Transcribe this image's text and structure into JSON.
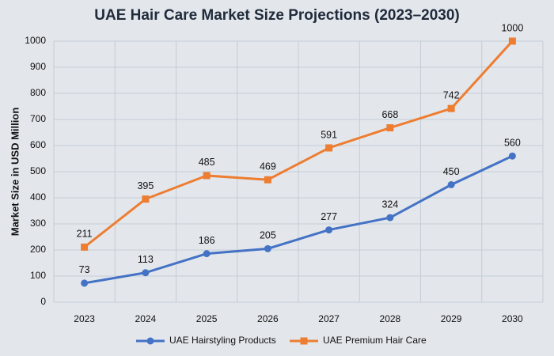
{
  "chart_data": {
    "type": "line",
    "title": "UAE Hair Care Market Size Projections (2023–2030)",
    "y_label": "Market Size in USD Million",
    "categories": [
      "2023",
      "2024",
      "2025",
      "2026",
      "2027",
      "2028",
      "2029",
      "2030"
    ],
    "series": [
      {
        "name": "UAE Hairstyling Products",
        "color": "#4472c4",
        "values": [
          73,
          113,
          186,
          205,
          277,
          324,
          450,
          560
        ]
      },
      {
        "name": "UAE Premium Hair Care",
        "color": "#ed7d31",
        "values": [
          211,
          395,
          485,
          469,
          591,
          668,
          742,
          1000
        ]
      }
    ],
    "ylim": [
      0,
      1000
    ],
    "yticks": [
      0,
      100,
      200,
      300,
      400,
      500,
      600,
      700,
      800,
      900,
      1000
    ],
    "grid": true,
    "legend": "bottom"
  }
}
